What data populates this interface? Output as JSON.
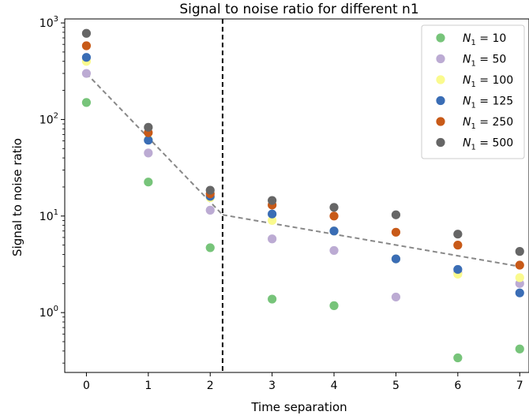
{
  "chart_data": {
    "type": "scatter",
    "title": "Signal to noise ratio for different n1",
    "xlabel": "Time separation",
    "ylabel": "Signal to noise ratio",
    "yscale": "log",
    "xlim": [
      -0.35,
      7.15
    ],
    "ylim": [
      0.24,
      1100
    ],
    "xticks": [
      0,
      1,
      2,
      3,
      4,
      5,
      6,
      7
    ],
    "xtick_labels": [
      "0",
      "1",
      "2",
      "3",
      "4",
      "5",
      "6",
      "7"
    ],
    "ytick_labels": [
      {
        "value": 1,
        "base": "10",
        "exp": "0"
      },
      {
        "value": 10,
        "base": "10",
        "exp": "1"
      },
      {
        "value": 100,
        "base": "10",
        "exp": "2"
      },
      {
        "value": 1000,
        "base": "10",
        "exp": "3"
      }
    ],
    "grid": false,
    "legend_position": "top-right",
    "x": [
      0,
      1,
      2,
      3,
      4,
      5,
      6,
      7
    ],
    "series": [
      {
        "label_main": "N",
        "label_sub": "1",
        "label_rest": " = 10",
        "color": "#77c47a",
        "values": [
          150,
          22.5,
          4.7,
          1.38,
          1.18,
          null,
          0.34,
          0.42
        ]
      },
      {
        "label_main": "N",
        "label_sub": "1",
        "label_rest": " = 50",
        "color": "#bcabd3",
        "values": [
          300,
          45,
          11.5,
          5.8,
          4.4,
          1.45,
          2.6,
          2.0
        ]
      },
      {
        "label_main": "N",
        "label_sub": "1",
        "label_rest": " = 100",
        "color": "#fafa8e",
        "values": [
          400,
          62,
          15.5,
          9.0,
          7.0,
          3.6,
          2.5,
          2.3
        ]
      },
      {
        "label_main": "N",
        "label_sub": "1",
        "label_rest": " = 125",
        "color": "#3a6db5",
        "values": [
          440,
          61,
          16,
          10.5,
          7.0,
          3.6,
          2.8,
          1.6
        ]
      },
      {
        "label_main": "N",
        "label_sub": "1",
        "label_rest": " = 250",
        "color": "#c85a18",
        "values": [
          580,
          73,
          17,
          13,
          10,
          6.8,
          5.0,
          3.1
        ]
      },
      {
        "label_main": "N",
        "label_sub": "1",
        "label_rest": " = 500",
        "color": "#666666",
        "values": [
          780,
          83,
          18.5,
          14.5,
          12.3,
          10.3,
          6.5,
          4.3
        ]
      }
    ],
    "fit_lines": [
      {
        "style": "dashed",
        "color": "#888888",
        "points": [
          [
            0,
            300
          ],
          [
            2.2,
            10.3
          ]
        ]
      },
      {
        "style": "dashed",
        "color": "#888888",
        "points": [
          [
            2.2,
            10.3
          ],
          [
            7,
            3.0
          ]
        ]
      }
    ],
    "vertical_line": {
      "x": 2.2,
      "style": "dashed",
      "color": "#000000"
    }
  }
}
